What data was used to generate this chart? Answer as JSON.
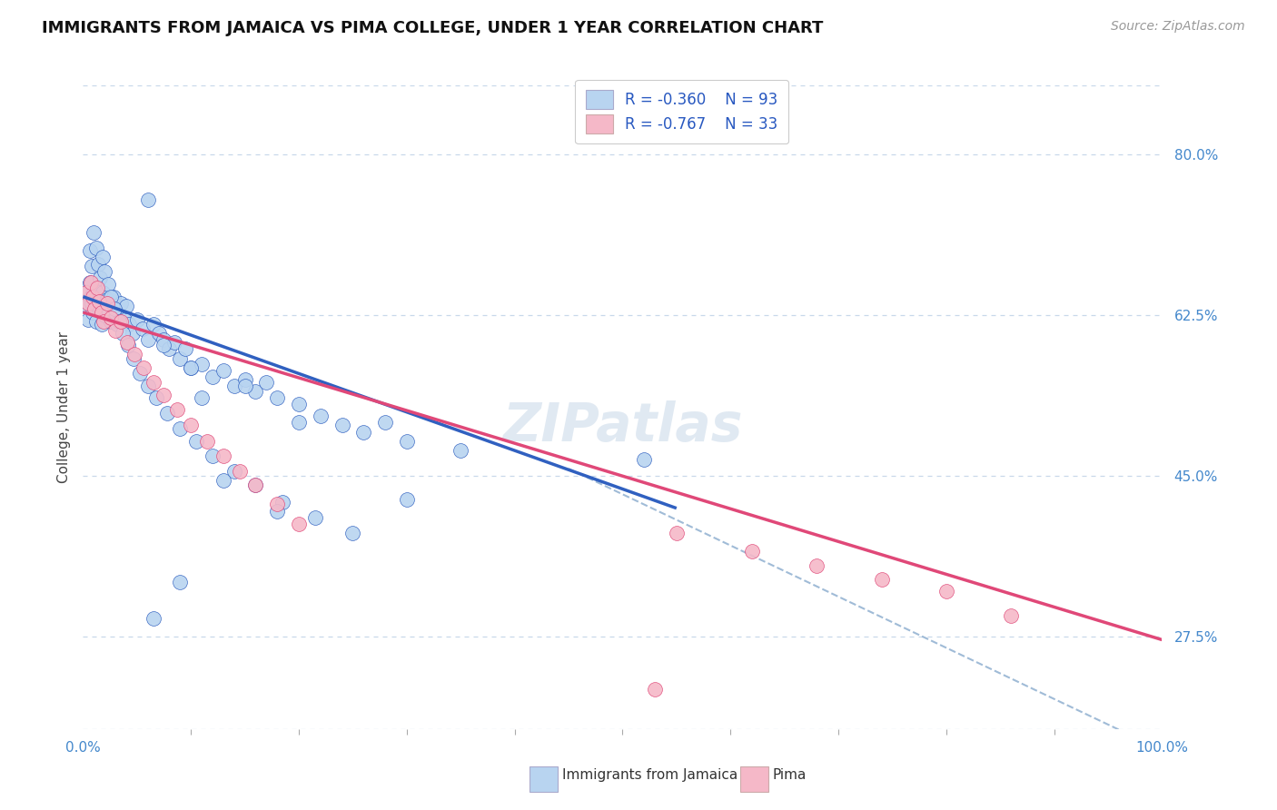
{
  "title": "IMMIGRANTS FROM JAMAICA VS PIMA COLLEGE, UNDER 1 YEAR CORRELATION CHART",
  "source": "Source: ZipAtlas.com",
  "ylabel": "College, Under 1 year",
  "y_axis_right_labels": [
    "80.0%",
    "62.5%",
    "45.0%",
    "27.5%"
  ],
  "y_axis_right_values": [
    0.8,
    0.625,
    0.45,
    0.275
  ],
  "legend_label1": "Immigrants from Jamaica",
  "legend_label2": "Pima",
  "legend_r1": "R = -0.360",
  "legend_n1": "N = 93",
  "legend_r2": "R = -0.767",
  "legend_n2": "N = 33",
  "color_blue_fill": "#b8d4f0",
  "color_pink_fill": "#f5b8c8",
  "color_blue_line": "#3060c0",
  "color_pink_line": "#e04878",
  "color_dashed": "#90b0d0",
  "background": "#ffffff",
  "grid_color": "#c8d8ea",
  "xlim": [
    0.0,
    1.0
  ],
  "ylim": [
    0.175,
    0.875
  ],
  "blue_points_x": [
    0.002,
    0.003,
    0.004,
    0.005,
    0.006,
    0.007,
    0.008,
    0.009,
    0.01,
    0.011,
    0.012,
    0.013,
    0.014,
    0.015,
    0.016,
    0.017,
    0.018,
    0.019,
    0.02,
    0.022,
    0.024,
    0.026,
    0.028,
    0.03,
    0.032,
    0.035,
    0.038,
    0.04,
    0.043,
    0.046,
    0.05,
    0.055,
    0.06,
    0.065,
    0.07,
    0.075,
    0.08,
    0.085,
    0.09,
    0.095,
    0.1,
    0.11,
    0.12,
    0.13,
    0.14,
    0.15,
    0.16,
    0.17,
    0.18,
    0.2,
    0.22,
    0.24,
    0.26,
    0.28,
    0.3,
    0.35,
    0.006,
    0.008,
    0.01,
    0.012,
    0.014,
    0.016,
    0.018,
    0.02,
    0.023,
    0.026,
    0.029,
    0.033,
    0.037,
    0.042,
    0.047,
    0.053,
    0.06,
    0.068,
    0.078,
    0.09,
    0.105,
    0.12,
    0.14,
    0.16,
    0.185,
    0.215,
    0.06,
    0.1,
    0.15,
    0.2,
    0.075,
    0.11,
    0.3,
    0.52,
    0.25,
    0.18,
    0.13,
    0.09,
    0.065
  ],
  "blue_points_y": [
    0.64,
    0.655,
    0.635,
    0.62,
    0.66,
    0.645,
    0.638,
    0.628,
    0.65,
    0.642,
    0.618,
    0.635,
    0.655,
    0.645,
    0.63,
    0.615,
    0.65,
    0.638,
    0.625,
    0.642,
    0.628,
    0.618,
    0.645,
    0.628,
    0.615,
    0.638,
    0.62,
    0.635,
    0.615,
    0.605,
    0.62,
    0.61,
    0.598,
    0.615,
    0.605,
    0.598,
    0.588,
    0.595,
    0.578,
    0.588,
    0.568,
    0.572,
    0.558,
    0.565,
    0.548,
    0.555,
    0.542,
    0.552,
    0.535,
    0.528,
    0.515,
    0.505,
    0.498,
    0.508,
    0.488,
    0.478,
    0.695,
    0.678,
    0.715,
    0.698,
    0.68,
    0.665,
    0.688,
    0.672,
    0.658,
    0.645,
    0.632,
    0.618,
    0.605,
    0.592,
    0.578,
    0.562,
    0.548,
    0.535,
    0.518,
    0.502,
    0.488,
    0.472,
    0.455,
    0.44,
    0.422,
    0.405,
    0.75,
    0.568,
    0.548,
    0.508,
    0.592,
    0.535,
    0.425,
    0.468,
    0.388,
    0.412,
    0.445,
    0.335,
    0.295
  ],
  "pink_points_x": [
    0.003,
    0.005,
    0.007,
    0.009,
    0.011,
    0.013,
    0.015,
    0.017,
    0.019,
    0.022,
    0.026,
    0.03,
    0.035,
    0.041,
    0.048,
    0.056,
    0.065,
    0.075,
    0.087,
    0.1,
    0.115,
    0.13,
    0.145,
    0.16,
    0.18,
    0.2,
    0.55,
    0.62,
    0.68,
    0.74,
    0.8,
    0.86,
    0.53
  ],
  "pink_points_y": [
    0.65,
    0.638,
    0.66,
    0.645,
    0.632,
    0.655,
    0.64,
    0.628,
    0.618,
    0.638,
    0.622,
    0.608,
    0.618,
    0.595,
    0.582,
    0.568,
    0.552,
    0.538,
    0.522,
    0.505,
    0.488,
    0.472,
    0.455,
    0.44,
    0.42,
    0.398,
    0.388,
    0.368,
    0.352,
    0.338,
    0.325,
    0.298,
    0.218
  ],
  "blue_line_x": [
    0.0,
    0.55
  ],
  "blue_line_y": [
    0.645,
    0.415
  ],
  "pink_line_x": [
    0.0,
    1.0
  ],
  "pink_line_y": [
    0.628,
    0.272
  ],
  "dashed_line_x": [
    0.45,
    1.0
  ],
  "dashed_line_y": [
    0.458,
    0.152
  ]
}
